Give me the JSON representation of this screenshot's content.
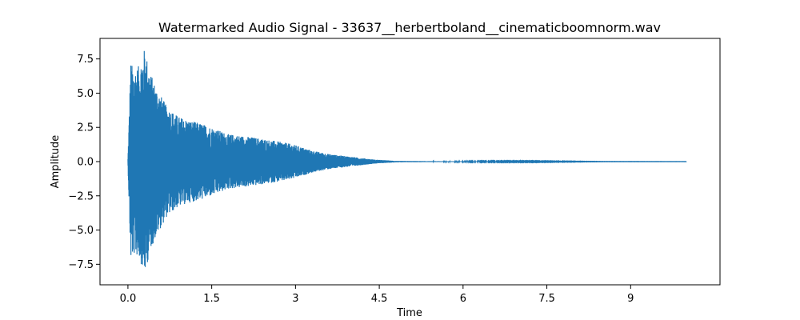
{
  "chart_data": {
    "type": "line",
    "title": "Watermarked Audio Signal - 33637__herbertboland__cinematicboomnorm.wav",
    "xlabel": "Time",
    "ylabel": "Amplitude",
    "xlim": [
      -0.5,
      10.6
    ],
    "ylim": [
      -9.0,
      9.0
    ],
    "xticks": [
      0,
      1.5,
      3,
      4.5,
      6,
      7.5,
      9
    ],
    "xtick_labels": [
      "0.0",
      "1.5",
      "3",
      "4.5",
      "6",
      "7.5",
      "9"
    ],
    "yticks": [
      -7.5,
      -5.0,
      -2.5,
      0.0,
      2.5,
      5.0,
      7.5
    ],
    "ytick_labels": [
      "−7.5",
      "−5.0",
      "−2.5",
      "0.0",
      "2.5",
      "5.0",
      "7.5"
    ],
    "grid": false,
    "legend": "none",
    "series": [
      {
        "color": "#1f77b4",
        "x_range": [
          0,
          10.0
        ],
        "peak_max": 8.3,
        "peak_min": -8.4,
        "envelope": {
          "t": [
            0,
            0.05,
            0.1,
            0.2,
            0.3,
            0.4,
            0.5,
            0.7,
            0.9,
            1.1,
            1.3,
            1.5,
            1.8,
            2.0,
            2.2,
            2.5,
            2.8,
            3.0,
            3.3,
            3.6,
            4.0,
            4.4,
            4.8,
            5.5,
            6.5,
            7.5,
            8.5,
            10.0
          ],
          "a": [
            0.2,
            7.3,
            6.8,
            7.0,
            8.3,
            6.5,
            5.5,
            4.0,
            3.3,
            3.0,
            2.8,
            2.5,
            2.0,
            1.9,
            1.8,
            1.6,
            1.4,
            1.2,
            0.8,
            0.55,
            0.35,
            0.15,
            0.05,
            0.03,
            0.02,
            0.015,
            0.005,
            0.003
          ]
        }
      }
    ]
  }
}
